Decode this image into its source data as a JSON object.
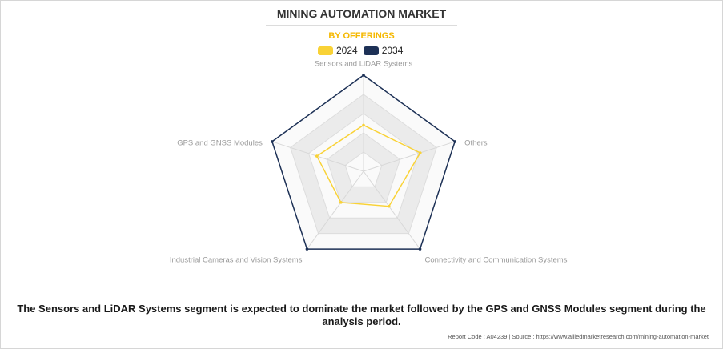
{
  "title": "MINING AUTOMATION MARKET",
  "subtitle": "BY OFFERINGS",
  "legend": [
    {
      "label": "2024",
      "color": "#f9d236"
    },
    {
      "label": "2034",
      "color": "#1d3156"
    }
  ],
  "chart_data": {
    "type": "radar",
    "categories": [
      "Sensors and LiDAR Systems",
      "Others",
      "Connectivity and Communication Systems",
      "Industrial Cameras and Vision Systems",
      "GPS and GNSS Modules"
    ],
    "series": [
      {
        "name": "2024",
        "color": "#f9d236",
        "values": [
          0.48,
          0.62,
          0.45,
          0.4,
          0.51
        ]
      },
      {
        "name": "2034",
        "color": "#1d3156",
        "values": [
          1.0,
          1.0,
          1.0,
          1.0,
          1.0
        ]
      }
    ],
    "rlim": [
      0,
      1
    ],
    "grid": true,
    "legend_position": "top-center"
  },
  "caption": "The Sensors and LiDAR Systems segment is expected to dominate the market followed by the GPS and GNSS Modules segment during the analysis period.",
  "footer": "Report Code : A04239  |  Source : https://www.alliedmarketresearch.com/mining-automation-market"
}
